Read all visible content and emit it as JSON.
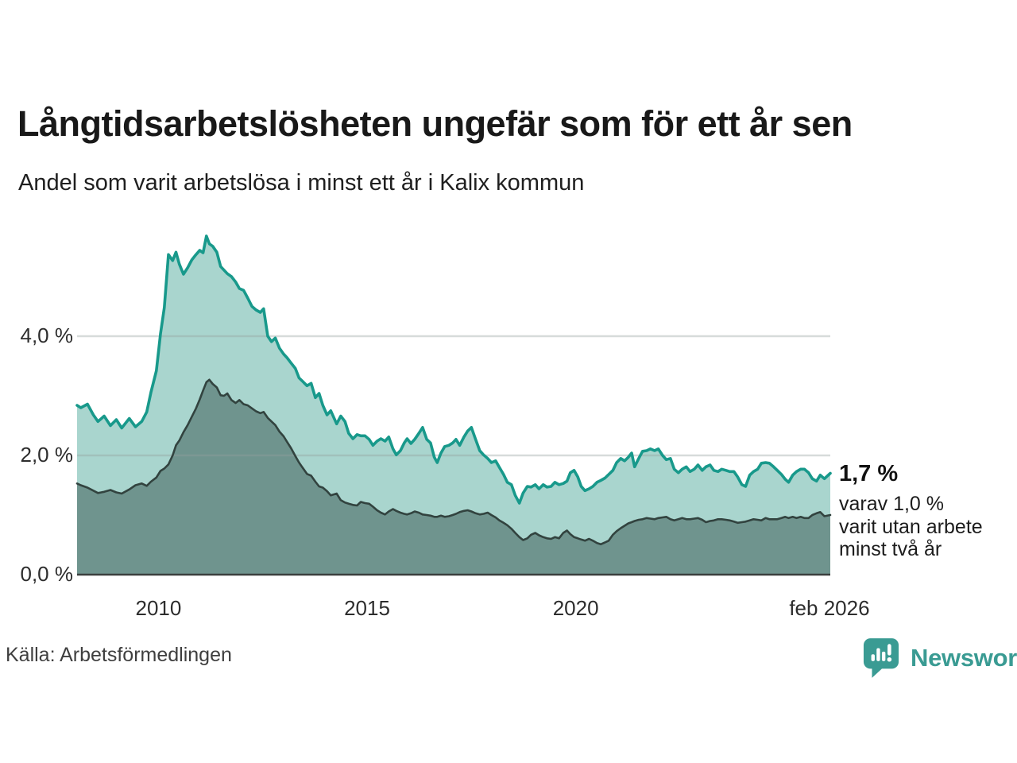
{
  "header": {
    "title": "Långtidsarbetslösheten ungefär som för ett år sen",
    "subtitle": "Andel som varit arbetslösa i minst ett år i Kalix kommun"
  },
  "annotation": {
    "headline": "1,7 %",
    "line1": "varav 1,0 %",
    "line2": "varit utan arbete",
    "line3": "minst två år"
  },
  "footer": {
    "source": "Källa: Arbetsförmedlingen",
    "brand": "Newsworthy"
  },
  "colors": {
    "accent_teal_line": "#18998b",
    "light_area_fill": "#a9d5ce",
    "dark_area_fill": "#6f948e",
    "dark_line": "#32433f",
    "gridline": "#e3e3e5",
    "axis": "#3a3f3e",
    "brand_teal": "#3a9b93",
    "text": "#191919"
  },
  "chart_data": {
    "type": "area",
    "title": "Långtidsarbetslösheten ungefär som för ett år sen",
    "subtitle": "Andel som varit arbetslösa i minst ett år i Kalix kommun",
    "unit": "%",
    "grid": "horizontal",
    "legend_position": "none",
    "xlim": [
      2008.05,
      2026.1
    ],
    "ylim": [
      0,
      6
    ],
    "yticks": [
      {
        "value": 0,
        "label": "0,0 %"
      },
      {
        "value": 2,
        "label": "2,0 %"
      },
      {
        "value": 4,
        "label": "4,0 %"
      }
    ],
    "xticks": [
      {
        "x": 2010.0,
        "label": "2010"
      },
      {
        "x": 2015.0,
        "label": "2015"
      },
      {
        "x": 2020.0,
        "label": "2020"
      },
      {
        "x": 2026.08,
        "label": "feb 2026"
      }
    ],
    "columns": [
      "year_decimal",
      "andel_arbetslosa_minst_1_ar_pct",
      "andel_utan_arbete_minst_2_ar_pct"
    ],
    "series_meta": [
      {
        "name": "Arbetslösa minst ett år",
        "line_color": "#18998b",
        "fill_color": "#a9d5ce",
        "last_value_label": "1,7 %"
      },
      {
        "name": "Varav utan arbete minst två år",
        "line_color": "#32433f",
        "fill_color": "#6f948e",
        "last_value_label": "1,0 %"
      }
    ],
    "points": [
      [
        2008.05,
        2.84,
        1.53
      ],
      [
        2008.14,
        2.8,
        1.5
      ],
      [
        2008.3,
        2.86,
        1.46
      ],
      [
        2008.44,
        2.68,
        1.41
      ],
      [
        2008.55,
        2.57,
        1.37
      ],
      [
        2008.7,
        2.66,
        1.39
      ],
      [
        2008.85,
        2.5,
        1.42
      ],
      [
        2008.99,
        2.6,
        1.38
      ],
      [
        2009.12,
        2.46,
        1.36
      ],
      [
        2009.3,
        2.62,
        1.43
      ],
      [
        2009.45,
        2.48,
        1.5
      ],
      [
        2009.6,
        2.57,
        1.53
      ],
      [
        2009.72,
        2.73,
        1.49
      ],
      [
        2009.82,
        3.06,
        1.56
      ],
      [
        2009.95,
        3.42,
        1.63
      ],
      [
        2010.05,
        4.04,
        1.74
      ],
      [
        2010.14,
        4.48,
        1.78
      ],
      [
        2010.24,
        5.37,
        1.85
      ],
      [
        2010.34,
        5.27,
        2.0
      ],
      [
        2010.42,
        5.41,
        2.17
      ],
      [
        2010.5,
        5.21,
        2.25
      ],
      [
        2010.6,
        5.04,
        2.39
      ],
      [
        2010.7,
        5.15,
        2.51
      ],
      [
        2010.8,
        5.28,
        2.65
      ],
      [
        2010.9,
        5.37,
        2.79
      ],
      [
        2010.99,
        5.44,
        2.94
      ],
      [
        2011.07,
        5.4,
        3.09
      ],
      [
        2011.15,
        5.68,
        3.23
      ],
      [
        2011.22,
        5.55,
        3.27
      ],
      [
        2011.3,
        5.51,
        3.2
      ],
      [
        2011.4,
        5.41,
        3.14
      ],
      [
        2011.49,
        5.17,
        3.01
      ],
      [
        2011.57,
        5.11,
        3.0
      ],
      [
        2011.65,
        5.05,
        3.04
      ],
      [
        2011.75,
        5.0,
        2.93
      ],
      [
        2011.85,
        4.91,
        2.88
      ],
      [
        2011.94,
        4.8,
        2.93
      ],
      [
        2012.04,
        4.77,
        2.86
      ],
      [
        2012.14,
        4.64,
        2.84
      ],
      [
        2012.24,
        4.5,
        2.79
      ],
      [
        2012.34,
        4.44,
        2.74
      ],
      [
        2012.44,
        4.4,
        2.71
      ],
      [
        2012.52,
        4.46,
        2.73
      ],
      [
        2012.62,
        4.0,
        2.63
      ],
      [
        2012.71,
        3.91,
        2.57
      ],
      [
        2012.8,
        3.97,
        2.51
      ],
      [
        2012.9,
        3.8,
        2.4
      ],
      [
        2013.0,
        3.7,
        2.32
      ],
      [
        2013.08,
        3.64,
        2.23
      ],
      [
        2013.18,
        3.55,
        2.12
      ],
      [
        2013.28,
        3.46,
        1.99
      ],
      [
        2013.37,
        3.3,
        1.88
      ],
      [
        2013.46,
        3.24,
        1.79
      ],
      [
        2013.56,
        3.17,
        1.69
      ],
      [
        2013.66,
        3.21,
        1.66
      ],
      [
        2013.76,
        2.97,
        1.56
      ],
      [
        2013.85,
        3.04,
        1.48
      ],
      [
        2013.94,
        2.84,
        1.46
      ],
      [
        2014.04,
        2.68,
        1.4
      ],
      [
        2014.13,
        2.75,
        1.33
      ],
      [
        2014.27,
        2.53,
        1.36
      ],
      [
        2014.37,
        2.66,
        1.25
      ],
      [
        2014.47,
        2.57,
        1.21
      ],
      [
        2014.56,
        2.37,
        1.19
      ],
      [
        2014.66,
        2.28,
        1.17
      ],
      [
        2014.76,
        2.35,
        1.16
      ],
      [
        2014.85,
        2.33,
        1.22
      ],
      [
        2014.95,
        2.33,
        1.2
      ],
      [
        2015.05,
        2.27,
        1.19
      ],
      [
        2015.14,
        2.17,
        1.14
      ],
      [
        2015.24,
        2.24,
        1.08
      ],
      [
        2015.33,
        2.28,
        1.04
      ],
      [
        2015.43,
        2.24,
        1.01
      ],
      [
        2015.52,
        2.31,
        1.06
      ],
      [
        2015.62,
        2.11,
        1.1
      ],
      [
        2015.7,
        2.01,
        1.07
      ],
      [
        2015.8,
        2.08,
        1.04
      ],
      [
        2015.89,
        2.21,
        1.02
      ],
      [
        2015.96,
        2.28,
        1.01
      ],
      [
        2016.05,
        2.2,
        1.03
      ],
      [
        2016.14,
        2.27,
        1.06
      ],
      [
        2016.24,
        2.37,
        1.04
      ],
      [
        2016.33,
        2.47,
        1.01
      ],
      [
        2016.43,
        2.27,
        1.0
      ],
      [
        2016.52,
        2.21,
        0.99
      ],
      [
        2016.61,
        1.97,
        0.97
      ],
      [
        2016.68,
        1.88,
        0.97
      ],
      [
        2016.77,
        2.04,
        0.99
      ],
      [
        2016.86,
        2.15,
        0.97
      ],
      [
        2016.96,
        2.17,
        0.98
      ],
      [
        2017.05,
        2.21,
        1.0
      ],
      [
        2017.13,
        2.27,
        1.02
      ],
      [
        2017.22,
        2.17,
        1.05
      ],
      [
        2017.32,
        2.31,
        1.07
      ],
      [
        2017.41,
        2.41,
        1.08
      ],
      [
        2017.5,
        2.47,
        1.06
      ],
      [
        2017.6,
        2.27,
        1.03
      ],
      [
        2017.7,
        2.08,
        1.01
      ],
      [
        2017.79,
        2.01,
        1.02
      ],
      [
        2017.89,
        1.95,
        1.04
      ],
      [
        2017.98,
        1.88,
        1.0
      ],
      [
        2018.08,
        1.91,
        0.96
      ],
      [
        2018.17,
        1.8,
        0.91
      ],
      [
        2018.27,
        1.68,
        0.87
      ],
      [
        2018.36,
        1.55,
        0.83
      ],
      [
        2018.46,
        1.51,
        0.77
      ],
      [
        2018.55,
        1.33,
        0.7
      ],
      [
        2018.65,
        1.2,
        0.63
      ],
      [
        2018.74,
        1.37,
        0.58
      ],
      [
        2018.84,
        1.48,
        0.61
      ],
      [
        2018.93,
        1.47,
        0.67
      ],
      [
        2019.03,
        1.51,
        0.7
      ],
      [
        2019.12,
        1.44,
        0.66
      ],
      [
        2019.22,
        1.51,
        0.63
      ],
      [
        2019.31,
        1.47,
        0.61
      ],
      [
        2019.41,
        1.48,
        0.6
      ],
      [
        2019.5,
        1.55,
        0.63
      ],
      [
        2019.6,
        1.51,
        0.61
      ],
      [
        2019.7,
        1.53,
        0.7
      ],
      [
        2019.79,
        1.57,
        0.74
      ],
      [
        2019.87,
        1.71,
        0.68
      ],
      [
        2019.96,
        1.75,
        0.63
      ],
      [
        2020.05,
        1.64,
        0.61
      ],
      [
        2020.13,
        1.48,
        0.59
      ],
      [
        2020.22,
        1.41,
        0.57
      ],
      [
        2020.32,
        1.44,
        0.6
      ],
      [
        2020.41,
        1.48,
        0.57
      ],
      [
        2020.51,
        1.55,
        0.53
      ],
      [
        2020.6,
        1.58,
        0.51
      ],
      [
        2020.7,
        1.62,
        0.54
      ],
      [
        2020.79,
        1.68,
        0.57
      ],
      [
        2020.89,
        1.75,
        0.67
      ],
      [
        2020.98,
        1.88,
        0.73
      ],
      [
        2021.08,
        1.95,
        0.78
      ],
      [
        2021.17,
        1.91,
        0.82
      ],
      [
        2021.26,
        1.97,
        0.86
      ],
      [
        2021.34,
        2.04,
        0.88
      ],
      [
        2021.41,
        1.81,
        0.9
      ],
      [
        2021.51,
        1.95,
        0.92
      ],
      [
        2021.6,
        2.07,
        0.93
      ],
      [
        2021.7,
        2.08,
        0.95
      ],
      [
        2021.79,
        2.11,
        0.94
      ],
      [
        2021.89,
        2.08,
        0.93
      ],
      [
        2021.98,
        2.11,
        0.95
      ],
      [
        2022.08,
        2.0,
        0.96
      ],
      [
        2022.17,
        1.93,
        0.97
      ],
      [
        2022.27,
        1.95,
        0.93
      ],
      [
        2022.36,
        1.77,
        0.91
      ],
      [
        2022.46,
        1.71,
        0.93
      ],
      [
        2022.55,
        1.77,
        0.95
      ],
      [
        2022.65,
        1.81,
        0.93
      ],
      [
        2022.74,
        1.73,
        0.93
      ],
      [
        2022.84,
        1.77,
        0.94
      ],
      [
        2022.93,
        1.84,
        0.95
      ],
      [
        2023.03,
        1.75,
        0.92
      ],
      [
        2023.12,
        1.81,
        0.88
      ],
      [
        2023.22,
        1.84,
        0.9
      ],
      [
        2023.31,
        1.75,
        0.91
      ],
      [
        2023.41,
        1.73,
        0.93
      ],
      [
        2023.5,
        1.77,
        0.93
      ],
      [
        2023.6,
        1.75,
        0.92
      ],
      [
        2023.69,
        1.73,
        0.91
      ],
      [
        2023.79,
        1.73,
        0.89
      ],
      [
        2023.88,
        1.64,
        0.87
      ],
      [
        2023.98,
        1.51,
        0.88
      ],
      [
        2024.07,
        1.48,
        0.89
      ],
      [
        2024.17,
        1.67,
        0.91
      ],
      [
        2024.26,
        1.73,
        0.93
      ],
      [
        2024.36,
        1.77,
        0.92
      ],
      [
        2024.45,
        1.87,
        0.91
      ],
      [
        2024.55,
        1.88,
        0.95
      ],
      [
        2024.64,
        1.87,
        0.93
      ],
      [
        2024.74,
        1.81,
        0.93
      ],
      [
        2024.83,
        1.75,
        0.93
      ],
      [
        2024.93,
        1.68,
        0.95
      ],
      [
        2025.02,
        1.6,
        0.97
      ],
      [
        2025.1,
        1.55,
        0.95
      ],
      [
        2025.2,
        1.67,
        0.97
      ],
      [
        2025.29,
        1.73,
        0.95
      ],
      [
        2025.39,
        1.77,
        0.97
      ],
      [
        2025.48,
        1.77,
        0.95
      ],
      [
        2025.58,
        1.71,
        0.95
      ],
      [
        2025.67,
        1.61,
        1.0
      ],
      [
        2025.77,
        1.57,
        1.03
      ],
      [
        2025.86,
        1.67,
        1.05
      ],
      [
        2025.96,
        1.61,
        0.98
      ],
      [
        2026.1,
        1.7,
        1.0
      ]
    ]
  }
}
